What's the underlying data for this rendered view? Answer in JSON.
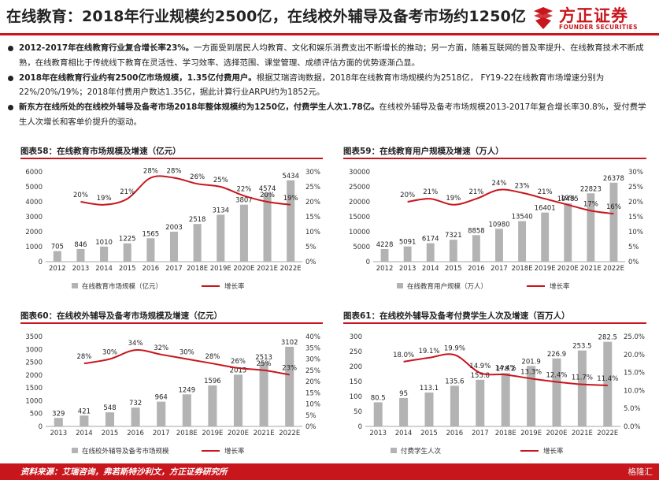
{
  "header": {
    "title": "在线教育：2018年行业规模约2500亿，在线校外辅导及备考市场约1250亿",
    "logo_cn": "方正证券",
    "logo_en": "FOUNDER SECURITIES",
    "accent": "#c8161d"
  },
  "bullets": [
    {
      "bold": "2012-2017年在线教育行业复合增长率23%。",
      "text": "一方面受到居民人均教育、文化和娱乐消费支出不断增长的推动；另一方面，随着互联网的普及率提升、在线教育技术不断成熟，在线教育相比于传统线下教育在灵活性、学习效率、选择范围、课堂管理、成绩评估方面的优势逐渐凸显。"
    },
    {
      "bold": "2018年在线教育行业约有2500亿市场规模，1.35亿付费用户。",
      "text": "根据艾瑞咨询数据，2018年在线教育市场规模约为2518亿， FY19-22在线教育市场增速分别为22%/20%/19%；2018年付费用户数达1.35亿，据此计算行业ARPU约为1852元。"
    },
    {
      "bold": "新东方在线所处的在线校外辅导及备考市场2018年整体规模约为1250亿，付费学生人次1.78亿。",
      "text": "在线校外辅导及备考市场规模2013-2017年复合增长率30.8%，受付费学生人次增长和客单价提升的驱动。"
    }
  ],
  "chart_data": [
    {
      "type": "bar",
      "title": "图表58：在线教育市场规模及增速（亿元）",
      "categories": [
        "2012",
        "2013",
        "2014",
        "2015",
        "2016",
        "2017",
        "2018E",
        "2019E",
        "2020E",
        "2021E",
        "2022E"
      ],
      "series": [
        {
          "name": "在线教育市场规模（亿元）",
          "type": "bar",
          "axis": "left",
          "values": [
            705,
            846,
            1010,
            1225,
            1565,
            2003,
            2518,
            3134,
            3807,
            4574,
            5434
          ]
        },
        {
          "name": "增长率",
          "type": "line",
          "axis": "right",
          "values": [
            null,
            20,
            19,
            21,
            28,
            28,
            26,
            25,
            22,
            20,
            19
          ]
        }
      ],
      "bar_labels": [
        "705",
        "846",
        "1010",
        "1225",
        "1565",
        "2003",
        "2518",
        "3134",
        "3807",
        "4574",
        "5434"
      ],
      "line_labels": [
        "",
        "20%",
        "19%",
        "21%",
        "28%",
        "28%",
        "26%",
        "25%",
        "22%",
        "20%",
        "19%"
      ],
      "ylim_left": [
        0,
        6000
      ],
      "yticks_left": [
        "0",
        "1000",
        "2000",
        "3000",
        "4000",
        "5000",
        "6000"
      ],
      "ylim_right": [
        0,
        30
      ],
      "yticks_right": [
        "0%",
        "5%",
        "10%",
        "15%",
        "20%",
        "25%",
        "30%"
      ],
      "legend": "bottom"
    },
    {
      "type": "bar",
      "title": "图表59：在线教育用户规模及增速（万人）",
      "categories": [
        "2012",
        "2013",
        "2014",
        "2015",
        "2016",
        "2017",
        "2018E",
        "2019E",
        "2020E",
        "2021E",
        "2022E"
      ],
      "series": [
        {
          "name": "在线教育用户规模（万人）",
          "type": "bar",
          "axis": "left",
          "values": [
            4228,
            5091,
            6174,
            7321,
            8858,
            10980,
            13540,
            16401,
            19485,
            22823,
            26378
          ]
        },
        {
          "name": "增长率",
          "type": "line",
          "axis": "right",
          "values": [
            null,
            20,
            21,
            19,
            21,
            24,
            23,
            21,
            19,
            17,
            16
          ]
        }
      ],
      "bar_labels": [
        "4228",
        "5091",
        "6174",
        "7321",
        "8858",
        "10980",
        "13540",
        "16401",
        "19485",
        "22823",
        "26378"
      ],
      "line_labels": [
        "",
        "20%",
        "21%",
        "19%",
        "21%",
        "24%",
        "23%",
        "21%",
        "19%",
        "17%",
        "16%"
      ],
      "ylim_left": [
        0,
        30000
      ],
      "yticks_left": [
        "0",
        "5000",
        "10000",
        "15000",
        "20000",
        "25000",
        "30000"
      ],
      "ylim_right": [
        0,
        30
      ],
      "yticks_right": [
        "0%",
        "5%",
        "10%",
        "15%",
        "20%",
        "25%",
        "30%"
      ],
      "legend": "bottom"
    },
    {
      "type": "bar",
      "title": "图表60：在线校外辅导及备考市场规模及增速（亿元）",
      "categories": [
        "2013",
        "2014",
        "2015",
        "2016",
        "2017",
        "2018E",
        "2019E",
        "2020E",
        "2021E",
        "2022E"
      ],
      "series": [
        {
          "name": "在线校外辅导及备考市场规模",
          "type": "bar",
          "axis": "left",
          "values": [
            329,
            421,
            548,
            732,
            964,
            1249,
            1596,
            2015,
            2513,
            3102
          ]
        },
        {
          "name": "增长率",
          "type": "line",
          "axis": "right",
          "values": [
            null,
            28,
            30,
            34,
            32,
            30,
            28,
            26,
            25,
            23
          ]
        }
      ],
      "bar_labels": [
        "329",
        "421",
        "548",
        "732",
        "964",
        "1249",
        "1596",
        "2015",
        "2513",
        "3102"
      ],
      "line_labels": [
        "",
        "28%",
        "30%",
        "34%",
        "32%",
        "30%",
        "28%",
        "26%",
        "25%",
        "23%"
      ],
      "ylim_left": [
        0,
        3500
      ],
      "yticks_left": [
        "0",
        "500",
        "1000",
        "1500",
        "2000",
        "2500",
        "3000",
        "3500"
      ],
      "ylim_right": [
        0,
        40
      ],
      "yticks_right": [
        "0%",
        "5%",
        "10%",
        "15%",
        "20%",
        "25%",
        "30%",
        "35%",
        "40%"
      ],
      "legend": "bottom"
    },
    {
      "type": "bar",
      "title": "图表61：在线校外辅导及备考付费学生人次及增速（百万人）",
      "categories": [
        "2013",
        "2014",
        "2015",
        "2016",
        "2017",
        "2018E",
        "2019E",
        "2020E",
        "2021E",
        "2022E"
      ],
      "series": [
        {
          "name": "付费学生人次",
          "type": "bar",
          "axis": "left",
          "values": [
            80.5,
            95,
            113.1,
            135.6,
            155.8,
            178.2,
            201.9,
            226.9,
            253.5,
            282.5
          ]
        },
        {
          "name": "增长率",
          "type": "line",
          "axis": "right",
          "values": [
            null,
            18.0,
            19.1,
            19.9,
            14.9,
            14.4,
            13.3,
            12.4,
            11.7,
            11.4
          ]
        }
      ],
      "bar_labels": [
        "80.5",
        "95",
        "113.1",
        "135.6",
        "155.8",
        "178.2",
        "201.9",
        "226.9",
        "253.5",
        "282.5"
      ],
      "line_labels": [
        "",
        "18.0%",
        "19.1%",
        "19.9%",
        "14.9%",
        "14.4%",
        "13.3%",
        "12.4%",
        "11.7%",
        "11.4%"
      ],
      "ylim_left": [
        0,
        300
      ],
      "yticks_left": [
        "0",
        "50",
        "100",
        "150",
        "200",
        "250",
        "300"
      ],
      "ylim_right": [
        0,
        25
      ],
      "yticks_right": [
        "0.0%",
        "5.0%",
        "10.0%",
        "15.0%",
        "20.0%",
        "25.0%"
      ],
      "legend": "bottom"
    }
  ],
  "colors": {
    "bar": "#b3b3b3",
    "line": "#c8161d",
    "axis": "#888888"
  },
  "footer": {
    "source": "资料来源：艾瑞咨询，弗若斯特沙利文，方正证券研究所",
    "watermark": "格隆汇"
  }
}
